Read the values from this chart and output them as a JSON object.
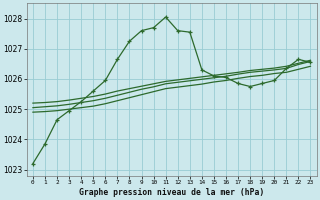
{
  "title": "Graphe pression niveau de la mer (hPa)",
  "background_color": "#cce8ec",
  "grid_color": "#99ccd4",
  "line_color": "#2d6a2d",
  "x_ticks": [
    0,
    1,
    2,
    3,
    4,
    5,
    6,
    7,
    8,
    9,
    10,
    11,
    12,
    13,
    14,
    15,
    16,
    17,
    18,
    19,
    20,
    21,
    22,
    23
  ],
  "ylim": [
    1022.8,
    1028.5
  ],
  "yticks": [
    1023,
    1024,
    1025,
    1026,
    1027,
    1028
  ],
  "series1": [
    1023.2,
    1023.85,
    1024.65,
    1024.95,
    1025.25,
    1025.6,
    1025.95,
    1026.65,
    1027.25,
    1027.6,
    1027.7,
    1028.05,
    1027.6,
    1027.55,
    1026.3,
    1026.1,
    1026.05,
    1025.85,
    1025.75,
    1025.85,
    1025.95,
    1026.35,
    1026.65,
    1026.55
  ],
  "series2": [
    1024.9,
    1024.92,
    1024.95,
    1025.0,
    1025.05,
    1025.1,
    1025.18,
    1025.28,
    1025.38,
    1025.48,
    1025.58,
    1025.68,
    1025.73,
    1025.78,
    1025.83,
    1025.9,
    1025.95,
    1026.02,
    1026.08,
    1026.12,
    1026.18,
    1026.22,
    1026.32,
    1026.42
  ],
  "series3": [
    1025.05,
    1025.08,
    1025.11,
    1025.16,
    1025.22,
    1025.28,
    1025.36,
    1025.46,
    1025.56,
    1025.66,
    1025.74,
    1025.84,
    1025.89,
    1025.94,
    1025.99,
    1026.04,
    1026.09,
    1026.16,
    1026.22,
    1026.26,
    1026.3,
    1026.35,
    1026.48,
    1026.58
  ],
  "series4": [
    1025.2,
    1025.22,
    1025.25,
    1025.3,
    1025.36,
    1025.42,
    1025.5,
    1025.6,
    1025.68,
    1025.76,
    1025.84,
    1025.92,
    1025.97,
    1026.02,
    1026.07,
    1026.12,
    1026.17,
    1026.22,
    1026.28,
    1026.32,
    1026.36,
    1026.42,
    1026.52,
    1026.62
  ]
}
